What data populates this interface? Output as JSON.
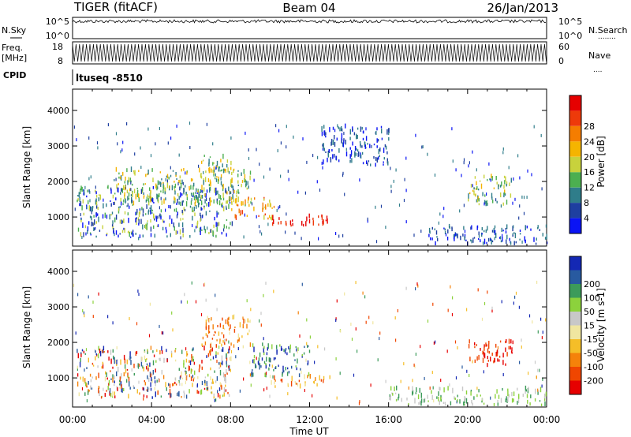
{
  "header": {
    "station": "TIGER (fitACF)",
    "beam": "Beam 04",
    "date": "26/Jan/2013"
  },
  "left_labels": {
    "nsky": "N.Sky",
    "freq": "Freq.",
    "freq_unit": "[MHz]",
    "cpid": "CPID"
  },
  "right_labels": {
    "nsearch": "N.Search",
    "nsearch_dots": "........",
    "nave": "Nave",
    "nave_dots": "...."
  },
  "noise_panel": {
    "left_ticks": [
      "10^5",
      "10^0"
    ],
    "right_ticks": [
      "10^5",
      "10^0"
    ]
  },
  "freq_panel": {
    "left_ticks": [
      "18",
      "8"
    ],
    "right_ticks": [
      "60",
      "0"
    ]
  },
  "cpid_text": "ltuseq -8510",
  "xaxis": {
    "label": "Time UT",
    "ticks": [
      "00:00",
      "04:00",
      "08:00",
      "12:00",
      "16:00",
      "20:00",
      "00:00"
    ]
  },
  "chart_data": [
    {
      "type": "heatmap",
      "panel": "power",
      "ylabel": "Slant Range [km]",
      "yticks": [
        1000,
        2000,
        3000,
        4000
      ],
      "ylim": [
        180,
        4600
      ],
      "xlim_hours": [
        0,
        24
      ],
      "colorbar": {
        "title": "Power [dB]",
        "range": [
          0,
          32
        ],
        "tick_labels": [
          "4",
          "8",
          "12",
          "16",
          "20",
          "24",
          "28"
        ],
        "colors": [
          "#0a14f5",
          "#1e3fa0",
          "#2f7d8a",
          "#4caf50",
          "#c8d23c",
          "#f5b400",
          "#f57d00",
          "#ee3a0a",
          "#e60000"
        ]
      },
      "regions": [
        {
          "t": [
            0.2,
            8.2
          ],
          "r": [
            400,
            1800
          ],
          "level": "low-mid"
        },
        {
          "t": [
            2.0,
            9.0
          ],
          "r": [
            1300,
            2300
          ],
          "level": "mid"
        },
        {
          "t": [
            6.5,
            8.0
          ],
          "r": [
            2200,
            2700
          ],
          "level": "mid"
        },
        {
          "t": [
            8.0,
            10.2
          ],
          "r": [
            900,
            1500
          ],
          "level": "high"
        },
        {
          "t": [
            10.0,
            13.0
          ],
          "r": [
            700,
            1000
          ],
          "level": "very-high"
        },
        {
          "t": [
            12.5,
            16.0
          ],
          "r": [
            2400,
            3500
          ],
          "level": "low"
        },
        {
          "t": [
            20.0,
            22.3
          ],
          "r": [
            1300,
            2100
          ],
          "level": "mid"
        },
        {
          "t": [
            18.0,
            24.0
          ],
          "r": [
            200,
            700
          ],
          "level": "low"
        }
      ]
    },
    {
      "type": "heatmap",
      "panel": "velocity",
      "ylabel": "Slant Range [km]",
      "yticks": [
        1000,
        2000,
        3000,
        4000
      ],
      "ylim": [
        180,
        4600
      ],
      "xlim_hours": [
        0,
        24
      ],
      "colorbar": {
        "title": "Velocity [m s-1]",
        "range": [
          -250,
          250
        ],
        "tick_labels": [
          "-200",
          "-100",
          "-50",
          "-15",
          "15",
          "50",
          "100",
          "200"
        ],
        "colors": [
          "#e60000",
          "#f04600",
          "#f5820a",
          "#f5be28",
          "#f0e6a0",
          "#c8c8c8",
          "#8cd23c",
          "#3c9b5a",
          "#285aa0",
          "#1428b4"
        ]
      },
      "regions": [
        {
          "t": [
            0.2,
            8.0
          ],
          "r": [
            400,
            1800
          ],
          "level": "mixed"
        },
        {
          "t": [
            6.5,
            9.0
          ],
          "r": [
            1800,
            2700
          ],
          "level": "negative"
        },
        {
          "t": [
            9.0,
            12.0
          ],
          "r": [
            1000,
            1900
          ],
          "level": "positive"
        },
        {
          "t": [
            10.0,
            13.0
          ],
          "r": [
            700,
            1000
          ],
          "level": "negative"
        },
        {
          "t": [
            20.0,
            22.3
          ],
          "r": [
            1300,
            2000
          ],
          "level": "strong-negative"
        },
        {
          "t": [
            16.0,
            24.0
          ],
          "r": [
            200,
            650
          ],
          "level": "near-zero-positive"
        }
      ]
    }
  ]
}
